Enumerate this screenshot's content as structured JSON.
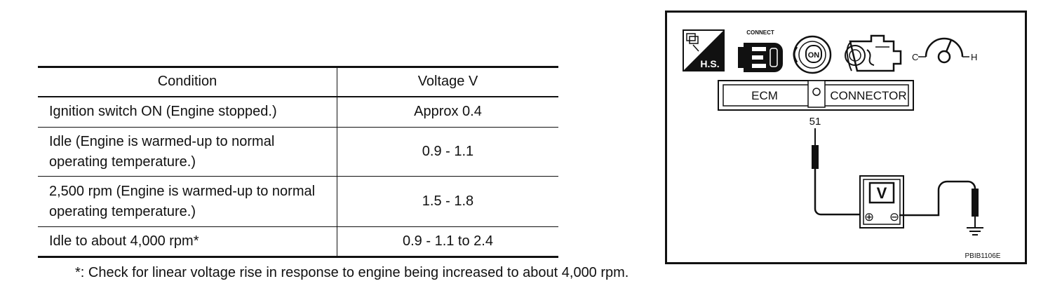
{
  "table": {
    "headers": [
      "Condition",
      "Voltage V"
    ],
    "rows": [
      {
        "condition": "Ignition switch ON (Engine stopped.)",
        "voltage": "Approx 0.4"
      },
      {
        "condition": "Idle (Engine is warmed-up to normal operating temperature.)",
        "voltage": "0.9 - 1.1"
      },
      {
        "condition": "2,500 rpm (Engine is warmed-up to normal operating temperature.)",
        "voltage": "1.5 - 1.8"
      },
      {
        "condition": "Idle to about 4,000 rpm*",
        "voltage": "0.9 - 1.1 to 2.4"
      }
    ]
  },
  "footnote": "*: Check for linear voltage rise in response to engine being increased to about 4,000 rpm.",
  "diagram": {
    "hs_label": "H.S.",
    "connect_label": "CONNECT",
    "ignition_label": "ON",
    "temp_cold": "C",
    "temp_hot": "H",
    "ecm_label": "ECM",
    "connector_label": "CONNECTOR",
    "terminal": "51",
    "meter_label": "V",
    "plus_symbol": "⊕",
    "minus_symbol": "⊖",
    "figure_code": "PBIB1106E"
  }
}
